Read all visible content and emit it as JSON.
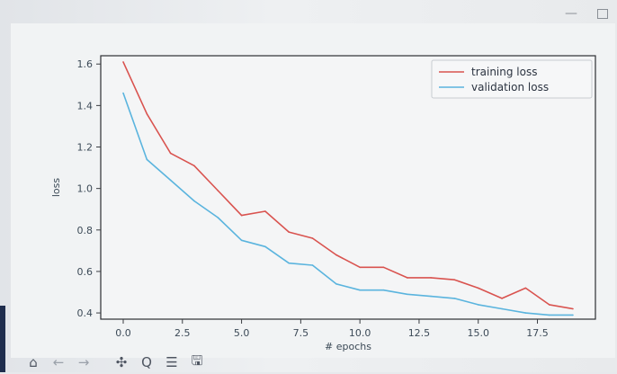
{
  "window": {
    "minimize_glyph": "—",
    "maximize_icon": "maximize-square"
  },
  "toolbar": {
    "buttons": [
      {
        "icon": "home-icon",
        "glyph": "⌂"
      },
      {
        "icon": "back-arrow-icon",
        "glyph": "←"
      },
      {
        "icon": "forward-arrow-icon",
        "glyph": "→"
      },
      {
        "icon": "pan-move-icon",
        "glyph": "✣"
      },
      {
        "icon": "zoom-magnifier-icon",
        "glyph": "Q"
      },
      {
        "icon": "configure-subplots-icon",
        "glyph": "☰"
      },
      {
        "icon": "save-floppy-icon",
        "glyph": "🖫"
      }
    ]
  },
  "chart_data": {
    "type": "line",
    "title": "",
    "xlabel": "# epochs",
    "ylabel": "loss",
    "xlim": [
      -0.95,
      19.95
    ],
    "ylim": [
      0.37,
      1.64
    ],
    "xticks": [
      0.0,
      2.5,
      5.0,
      7.5,
      10.0,
      12.5,
      15.0,
      17.5
    ],
    "xtick_labels": [
      "0.0",
      "2.5",
      "5.0",
      "7.5",
      "10.0",
      "12.5",
      "15.0",
      "17.5"
    ],
    "yticks": [
      0.4,
      0.6,
      0.8,
      1.0,
      1.2,
      1.4,
      1.6
    ],
    "ytick_labels": [
      "0.4",
      "0.6",
      "0.8",
      "1.0",
      "1.2",
      "1.4",
      "1.6"
    ],
    "grid": false,
    "legend_position": "top-right",
    "x": [
      0,
      1,
      2,
      3,
      4,
      5,
      6,
      7,
      8,
      9,
      10,
      11,
      12,
      13,
      14,
      15,
      16,
      17,
      18,
      19
    ],
    "series": [
      {
        "name": "training loss",
        "color": "#d9534f",
        "values": [
          1.61,
          1.36,
          1.17,
          1.11,
          0.99,
          0.87,
          0.89,
          0.79,
          0.76,
          0.68,
          0.62,
          0.62,
          0.57,
          0.57,
          0.56,
          0.52,
          0.47,
          0.52,
          0.44,
          0.42
        ]
      },
      {
        "name": "validation loss",
        "color": "#5ab4de",
        "values": [
          1.46,
          1.14,
          1.04,
          0.94,
          0.86,
          0.75,
          0.72,
          0.64,
          0.63,
          0.54,
          0.51,
          0.51,
          0.49,
          0.48,
          0.47,
          0.44,
          0.42,
          0.4,
          0.39,
          0.39
        ]
      }
    ]
  }
}
